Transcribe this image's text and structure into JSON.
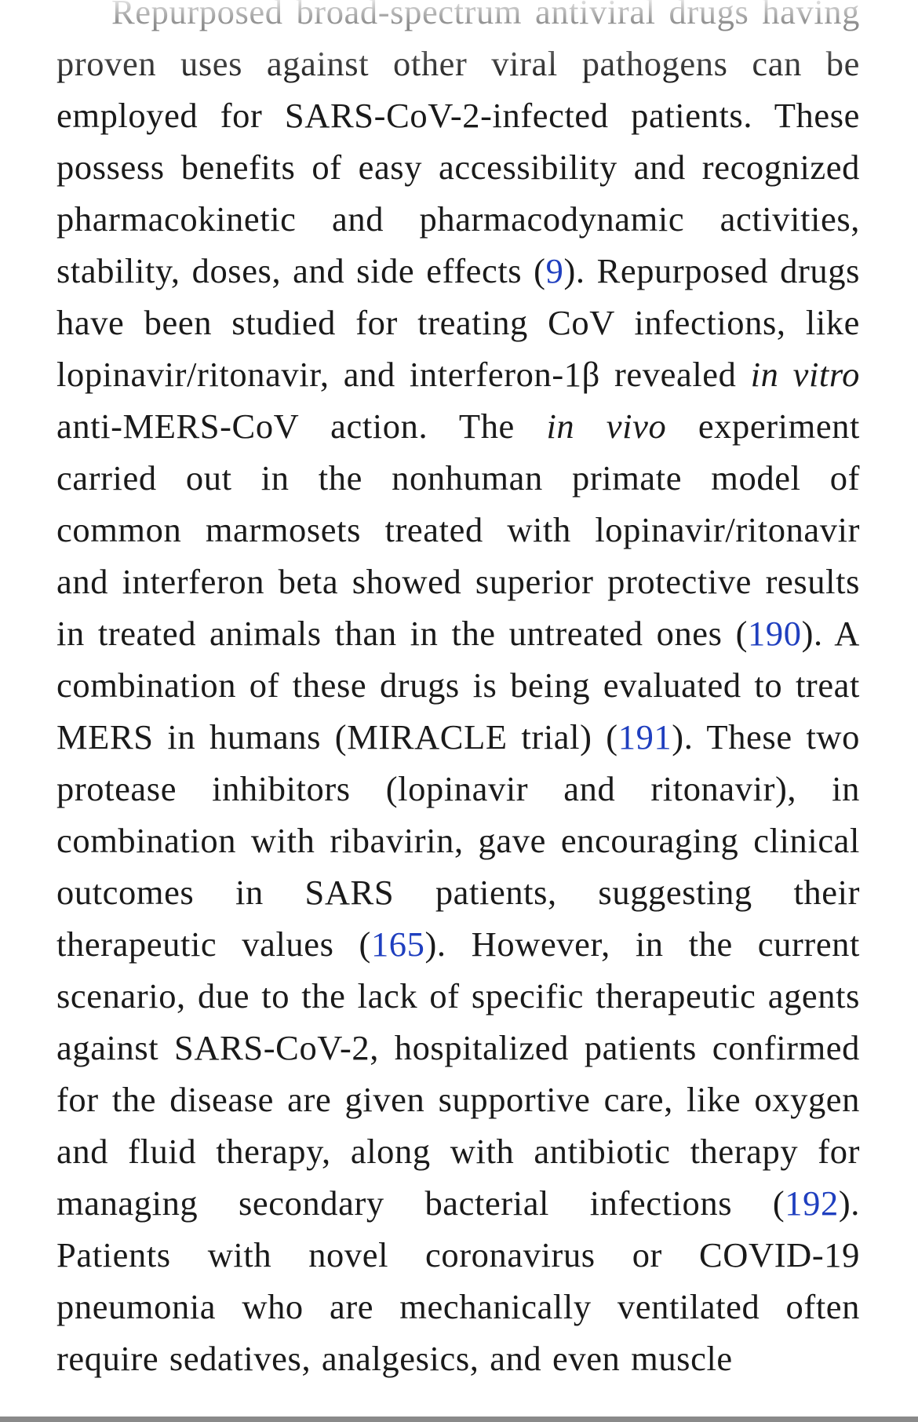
{
  "article": {
    "s1": "Repurposed broad-spectrum antiviral drugs having proven uses against other viral pathogens can be employed for SARS-CoV-2-infected patients. These possess benefits of easy accessibility and recognized pharmacokinetic and pharmacodynamic activities, stability, doses, and side effects (",
    "ref1": "9",
    "s2": "). Repurposed drugs have been studied for treating CoV infections, like lopinavir/ritonavir, and interferon-1β revealed ",
    "it1": "in vitro",
    "s3": " anti-MERS-CoV action. The ",
    "it2": "in vivo",
    "s4": " experiment carried out in the nonhuman primate model of common marmosets treated with lopinavir/ritonavir and interferon beta showed superior protective results in treated animals than in the untreated ones (",
    "ref2": "190",
    "s5": "). A combination of these drugs is being evaluated to treat MERS in humans (MIRACLE trial) (",
    "ref3": "191",
    "s6": "). These two protease inhibitors (lopinavir and ritonavir), in combination with ribavirin, gave encouraging clinical outcomes in SARS patients, suggesting their therapeutic values (",
    "ref4": "165",
    "s7": "). However, in the current scenario, due to the lack of specific therapeutic agents against SARS-CoV-2, hospitalized patients confirmed for the disease are given supportive care, like oxygen and fluid therapy, along with antibiotic therapy for managing secondary bacterial infections (",
    "ref5": "192",
    "s8": "). Patients with novel coronavirus or COVID-19 pneumonia who are mechanically ventilated often require sedatives, analgesics, and even muscle"
  },
  "colors": {
    "text": "#1a1a1a",
    "link": "#1f3fbf",
    "background": "#ffffff",
    "scrollbar": "#8a8a8a"
  }
}
